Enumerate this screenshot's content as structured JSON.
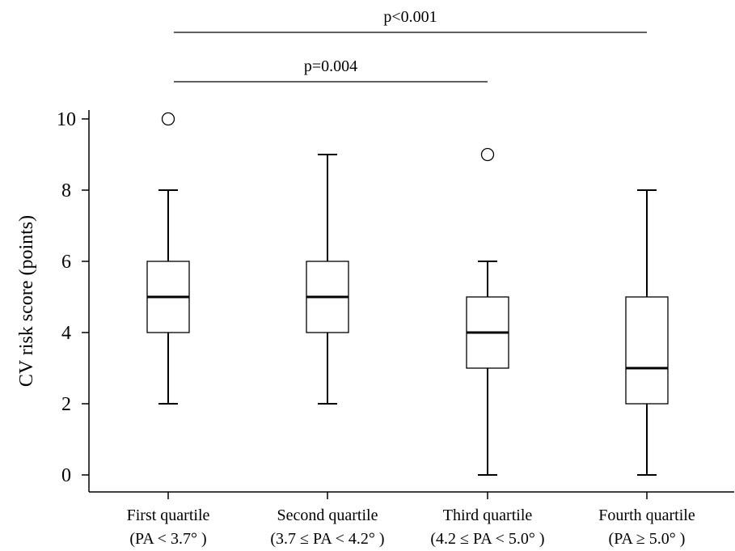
{
  "chart_data": {
    "type": "box",
    "ylabel": "CV risk score (points)",
    "xlabel": "",
    "ylim": [
      0,
      10
    ],
    "yticks": [
      0,
      2,
      4,
      6,
      8,
      10
    ],
    "categories": [
      {
        "line1": "First quartile",
        "line2": "(PA < 3.7°   )"
      },
      {
        "line1": "Second  quartile",
        "line2": "(3.7 ≤ PA < 4.2°   )"
      },
      {
        "line1": "Third  quartile",
        "line2": "(4.2 ≤ PA < 5.0°   )"
      },
      {
        "line1": "Fourth quartile",
        "line2": "(PA ≥ 5.0°   )"
      }
    ],
    "boxes": [
      {
        "min": 2,
        "q1": 4,
        "median": 5,
        "q3": 6,
        "max": 8,
        "outliers": [
          10
        ]
      },
      {
        "min": 2,
        "q1": 4,
        "median": 5,
        "q3": 6,
        "max": 9,
        "outliers": []
      },
      {
        "min": 0,
        "q1": 3,
        "median": 4,
        "q3": 5,
        "max": 6,
        "outliers": [
          9
        ]
      },
      {
        "min": 0,
        "q1": 2,
        "median": 3,
        "q3": 5,
        "max": 8,
        "outliers": []
      }
    ],
    "comparisons": [
      {
        "from": 0,
        "to": 3,
        "label": "p<0.001"
      },
      {
        "from": 0,
        "to": 2,
        "label": "p=0.004"
      }
    ],
    "grid": false
  }
}
